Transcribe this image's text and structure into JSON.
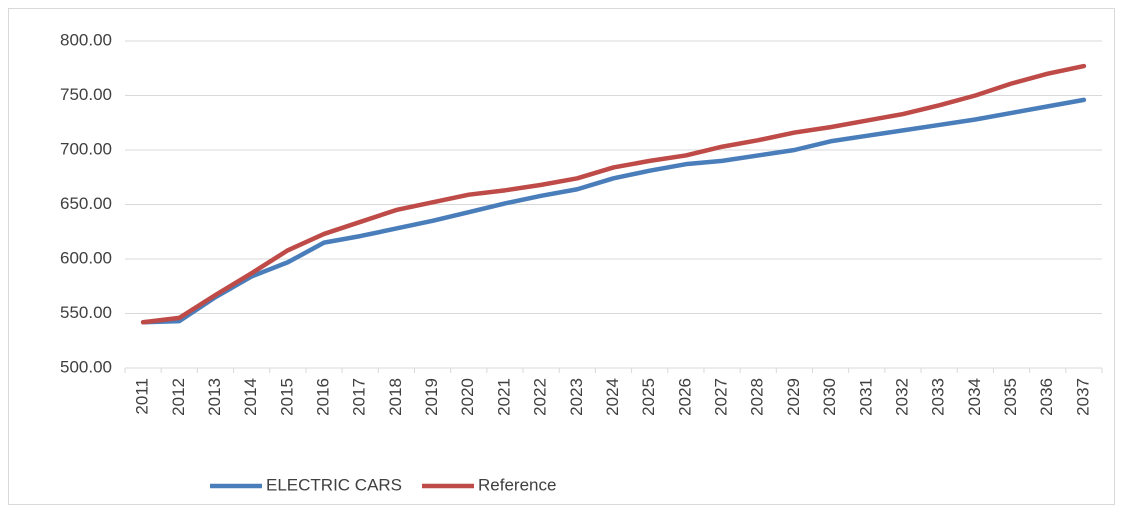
{
  "chart_data": {
    "type": "line",
    "categories": [
      "2011",
      "2012",
      "2013",
      "2014",
      "2015",
      "2016",
      "2017",
      "2018",
      "2019",
      "2020",
      "2021",
      "2022",
      "2023",
      "2024",
      "2025",
      "2026",
      "2027",
      "2028",
      "2029",
      "2030",
      "2031",
      "2032",
      "2033",
      "2034",
      "2035",
      "2036",
      "2037"
    ],
    "series": [
      {
        "name": "ELECTRIC CARS",
        "color": "#4a7ebb",
        "values": [
          542,
          543,
          565,
          584,
          597,
          615,
          621,
          628,
          635,
          643,
          651,
          658,
          664,
          674,
          681,
          687,
          690,
          695,
          700,
          708,
          713,
          718,
          723,
          728,
          734,
          740,
          746
        ]
      },
      {
        "name": "Reference",
        "color": "#be4b48",
        "values": [
          542,
          546,
          567,
          587,
          608,
          623,
          634,
          645,
          652,
          659,
          663,
          668,
          674,
          684,
          690,
          695,
          703,
          709,
          716,
          721,
          727,
          733,
          741,
          750,
          761,
          770,
          777
        ]
      }
    ],
    "ylim": [
      500,
      800
    ],
    "yticks": [
      {
        "value": 500,
        "label": "500.00"
      },
      {
        "value": 550,
        "label": "550.00"
      },
      {
        "value": 600,
        "label": "600.00"
      },
      {
        "value": 650,
        "label": "650.00"
      },
      {
        "value": 700,
        "label": "700.00"
      },
      {
        "value": 750,
        "label": "750.00"
      },
      {
        "value": 800,
        "label": "800.00"
      }
    ],
    "grid": true,
    "legend": "bottom"
  }
}
